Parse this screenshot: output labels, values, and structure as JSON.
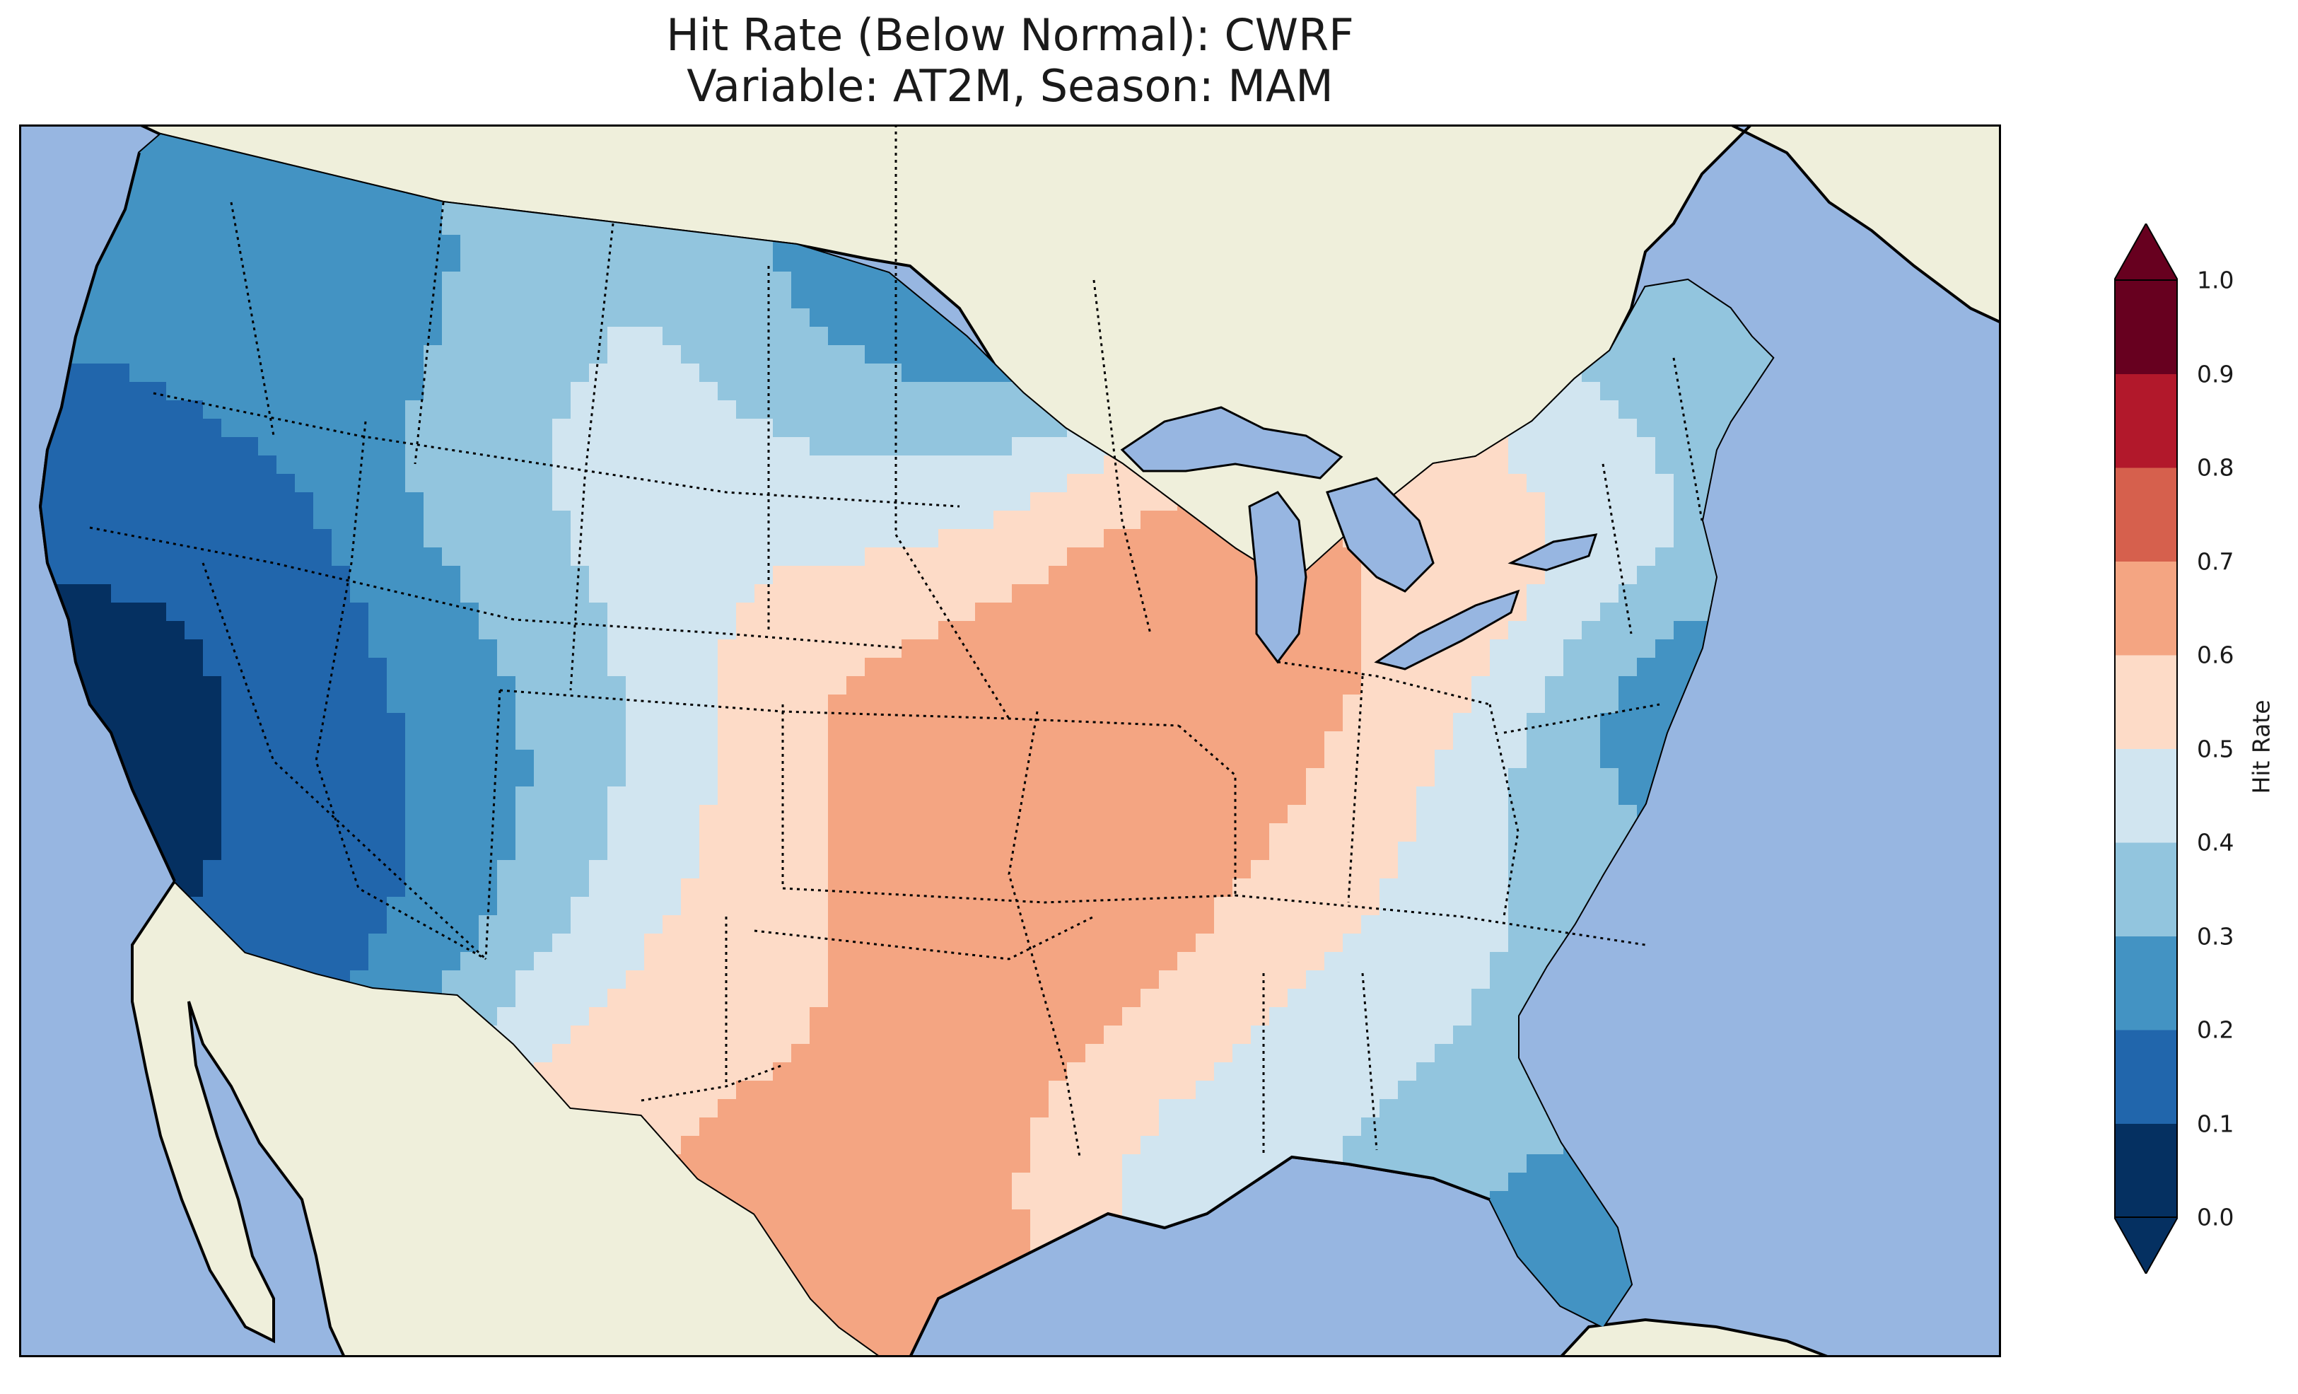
{
  "title": {
    "line1": "Hit Rate (Below Normal): CWRF",
    "line2": "Variable: AT2M, Season: MAM"
  },
  "colors": {
    "ocean": "#97b6e1",
    "land": "#efefdb",
    "bins": [
      "#053061",
      "#2166ac",
      "#4393c3",
      "#92c5de",
      "#d1e5f0",
      "#fddbc7",
      "#f4a582",
      "#d6604d",
      "#b2182b",
      "#67001f"
    ]
  },
  "colorbar": {
    "label": "Hit Rate",
    "ticks": [
      "0.0",
      "0.1",
      "0.2",
      "0.3",
      "0.4",
      "0.5",
      "0.6",
      "0.7",
      "0.8",
      "0.9",
      "1.0"
    ],
    "extend": "both"
  },
  "map": {
    "region": "Contiguous United States",
    "field": "Hit rate of below-normal 2 m air temperature forecasts (MAM)"
  }
}
